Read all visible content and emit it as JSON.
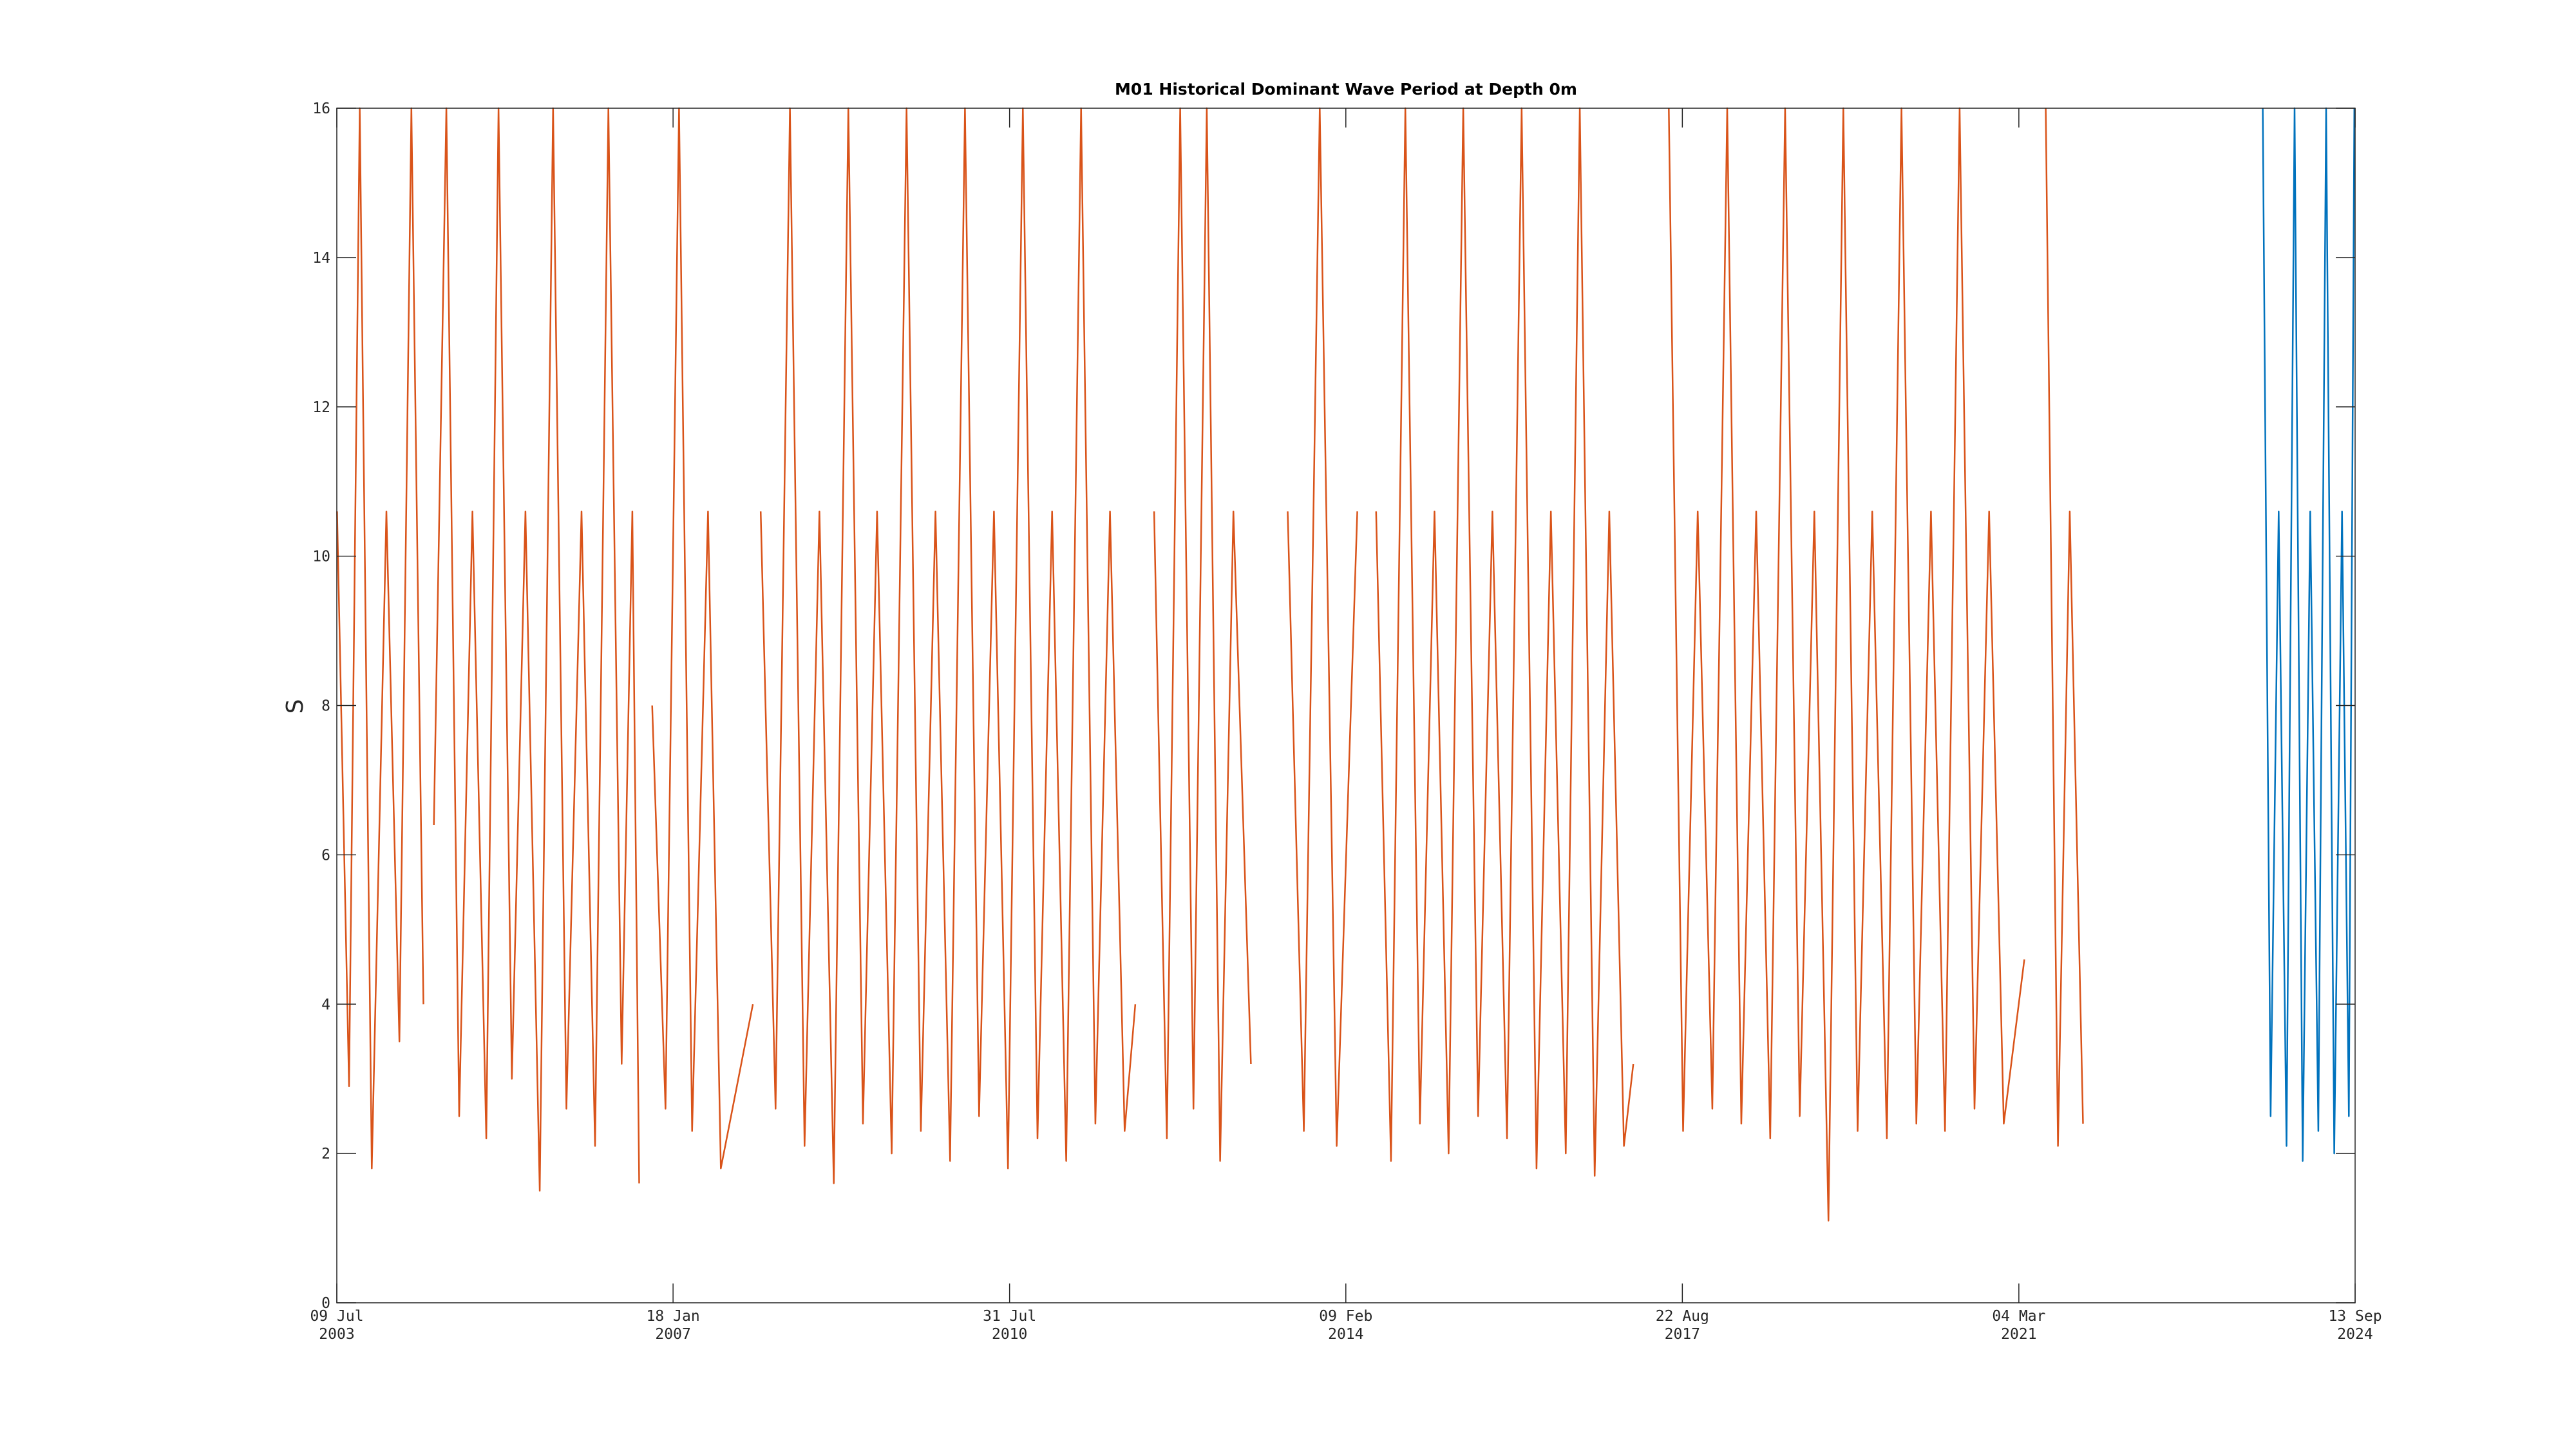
{
  "chart_data": {
    "type": "line",
    "title": "M01 Historical Dominant Wave Period at Depth 0m",
    "y_label": "S",
    "ylim": [
      0,
      16
    ],
    "yticks": [
      0,
      2,
      4,
      6,
      8,
      10,
      12,
      14,
      16
    ],
    "xlim": [
      "2003-07-09",
      "2024-09-13"
    ],
    "xticks": [
      {
        "value": "2003-07-09",
        "label": "09 Jul 2003"
      },
      {
        "value": "2007-01-18",
        "label": "18 Jan 2007"
      },
      {
        "value": "2010-07-31",
        "label": "31 Jul 2010"
      },
      {
        "value": "2014-02-09",
        "label": "09 Feb 2014"
      },
      {
        "value": "2017-08-22",
        "label": "22 Aug 2017"
      },
      {
        "value": "2021-03-04",
        "label": "04 Mar 2021"
      },
      {
        "value": "2024-09-13",
        "label": "13 Sep 2024"
      }
    ],
    "grid": false,
    "series": [
      {
        "color": "#d95319",
        "x": [
          "2003-07-10",
          "2003-08-25",
          "2003-10-05",
          "2003-11-20",
          "2004-01-15",
          "2004-03-05",
          "2004-04-20",
          "2004-06-05",
          "2004-06-25",
          "2004-07-15",
          "2004-09-01",
          "2004-10-20",
          "2004-12-10",
          "2005-02-01",
          "2005-03-20",
          "2005-05-10",
          "2005-07-01",
          "2005-08-25",
          "2005-10-15",
          "2005-12-05",
          "2006-02-01",
          "2006-03-25",
          "2006-05-15",
          "2006-07-05",
          "2006-08-15",
          "2006-09-10",
          "2006-10-01",
          "2006-10-30",
          "2006-12-20",
          "2007-02-10",
          "2007-04-01",
          "2007-06-01",
          "2007-07-20",
          "2007-11-20",
          "2007-12-05",
          "2007-12-20",
          "2008-02-15",
          "2008-04-10",
          "2008-06-05",
          "2008-08-01",
          "2008-09-25",
          "2008-11-20",
          "2009-01-15",
          "2009-03-10",
          "2009-05-05",
          "2009-07-01",
          "2009-08-25",
          "2009-10-20",
          "2009-12-15",
          "2010-02-10",
          "2010-04-05",
          "2010-06-01",
          "2010-07-25",
          "2010-09-20",
          "2010-11-15",
          "2011-01-10",
          "2011-03-05",
          "2011-05-01",
          "2011-06-25",
          "2011-08-20",
          "2011-10-15",
          "2011-11-25",
          "2011-12-20",
          "2012-02-05",
          "2012-03-25",
          "2012-05-15",
          "2012-07-05",
          "2012-08-25",
          "2012-10-15",
          "2012-12-05",
          "2013-02-10",
          "2013-03-20",
          "2013-07-01",
          "2013-09-01",
          "2013-11-01",
          "2014-01-05",
          "2014-03-25",
          "2014-04-15",
          "2014-06-05",
          "2014-08-01",
          "2014-09-25",
          "2014-11-20",
          "2015-01-15",
          "2015-03-10",
          "2015-05-05",
          "2015-07-01",
          "2015-08-25",
          "2015-10-20",
          "2015-12-15",
          "2016-02-10",
          "2016-04-05",
          "2016-06-01",
          "2016-07-25",
          "2016-09-20",
          "2016-11-15",
          "2017-01-10",
          "2017-02-15",
          "2017-04-01",
          "2017-07-01",
          "2017-08-25",
          "2017-10-20",
          "2017-12-15",
          "2018-02-10",
          "2018-04-05",
          "2018-06-01",
          "2018-07-25",
          "2018-09-20",
          "2018-11-15",
          "2019-01-10",
          "2019-03-05",
          "2019-05-01",
          "2019-06-25",
          "2019-08-20",
          "2019-10-15",
          "2019-12-10",
          "2020-02-05",
          "2020-04-01",
          "2020-05-25",
          "2020-07-20",
          "2020-09-15",
          "2020-11-10",
          "2021-01-05",
          "2021-03-25",
          "2021-04-20",
          "2021-06-15",
          "2021-08-01",
          "2021-09-15",
          "2021-11-05"
        ],
        "values": [
          10.6,
          2.9,
          16,
          1.8,
          10.6,
          3.5,
          16,
          4,
          null,
          6.4,
          16,
          2.5,
          10.6,
          2.2,
          16,
          3,
          10.6,
          1.5,
          16,
          2.6,
          10.6,
          2.1,
          16,
          3.2,
          10.6,
          1.6,
          null,
          8,
          2.6,
          16,
          2.3,
          10.6,
          1.8,
          4,
          null,
          10.6,
          2.6,
          16,
          2.1,
          10.6,
          1.6,
          16,
          2.4,
          10.6,
          2.0,
          16,
          2.3,
          10.6,
          1.9,
          16,
          2.5,
          10.6,
          1.8,
          16,
          2.2,
          10.6,
          1.9,
          16,
          2.4,
          10.6,
          2.3,
          4,
          null,
          10.6,
          2.2,
          16,
          2.6,
          16,
          1.9,
          10.6,
          3.2,
          null,
          10.6,
          2.3,
          16,
          2.1,
          10.6,
          null,
          10.6,
          1.9,
          16,
          2.4,
          10.6,
          2.0,
          16,
          2.5,
          10.6,
          2.2,
          16,
          1.8,
          10.6,
          2.0,
          16,
          1.7,
          10.6,
          2.1,
          3.2,
          null,
          16,
          2.3,
          10.6,
          2.6,
          16,
          2.4,
          10.6,
          2.2,
          16,
          2.5,
          10.6,
          1.1,
          16,
          2.3,
          10.6,
          2.2,
          16,
          2.4,
          10.6,
          2.3,
          16,
          2.6,
          10.6,
          2.4,
          4.6,
          null,
          16,
          2.1,
          10.6,
          2.4
        ]
      },
      {
        "color": "#0072bd",
        "x": [
          "2023-09-25",
          "2023-10-25",
          "2023-11-25",
          "2023-12-25",
          "2024-01-25",
          "2024-02-25",
          "2024-03-25",
          "2024-04-25",
          "2024-05-25",
          "2024-06-25",
          "2024-07-25",
          "2024-08-20",
          "2024-09-10"
        ],
        "values": [
          16,
          2.5,
          10.6,
          2.1,
          16,
          1.9,
          10.6,
          2.3,
          16,
          2.0,
          10.6,
          2.5,
          16
        ]
      }
    ]
  }
}
